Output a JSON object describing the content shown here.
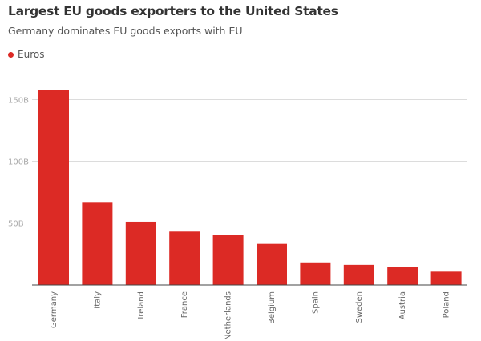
{
  "chart_data": {
    "type": "bar",
    "title": "Largest EU goods exporters to the United States",
    "subtitle": "Germany dominates EU goods exports with EU",
    "legend": [
      "Euros"
    ],
    "legend_placement": "top-left",
    "color": "#dc2a25",
    "categories": [
      "Germany",
      "Italy",
      "Ireland",
      "France",
      "Netherlands",
      "Belgium",
      "Spain",
      "Sweden",
      "Austria",
      "Poland"
    ],
    "series": [
      {
        "name": "Euros",
        "values": [
          158,
          67,
          51,
          43,
          40,
          33,
          18,
          16,
          14,
          10.5
        ]
      }
    ],
    "unit": "B",
    "yticks": [
      "50B",
      "100B",
      "150B"
    ],
    "ytick_values": [
      50,
      100,
      150
    ],
    "ylim": [
      0,
      165
    ],
    "grid": true
  }
}
